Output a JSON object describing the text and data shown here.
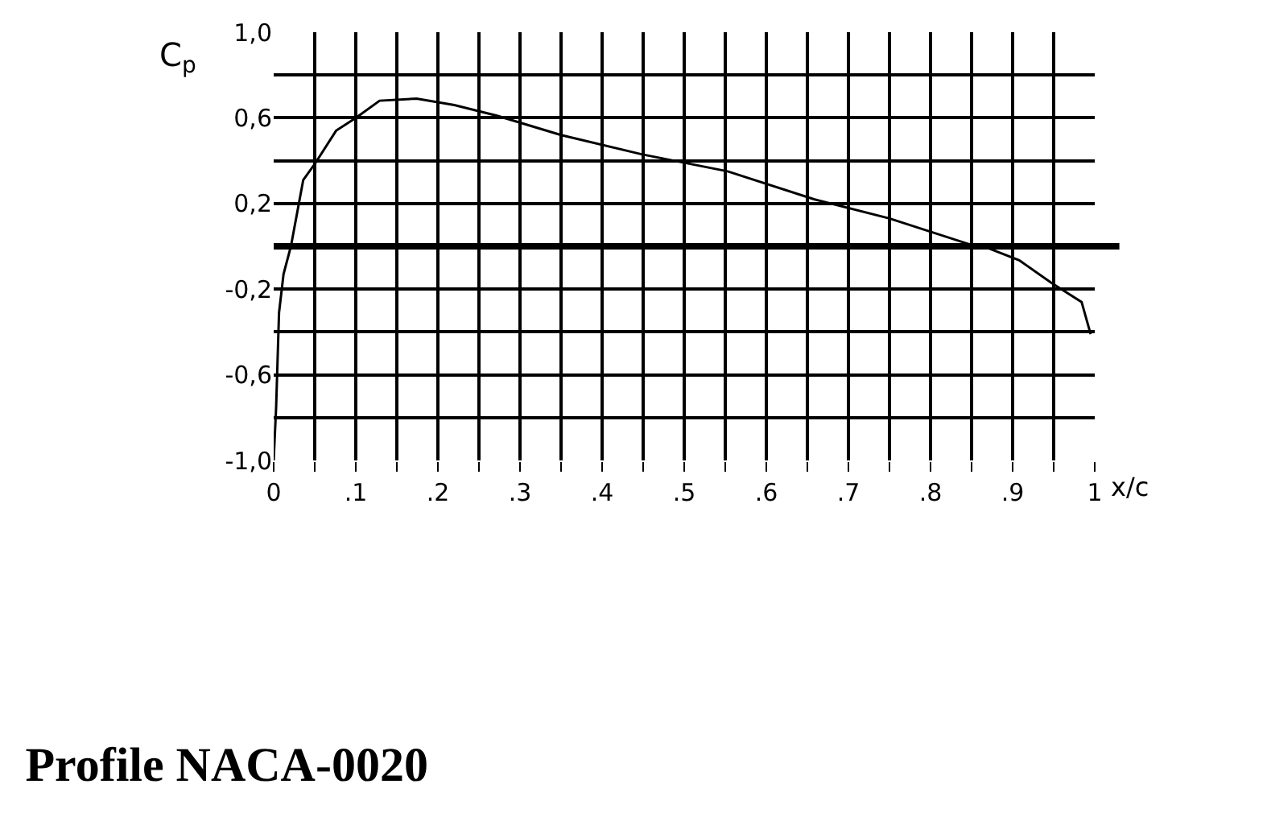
{
  "chart_data": {
    "type": "line",
    "title": "Profile NACA-0020",
    "xlabel": "x/c",
    "ylabel": "C$_{p}$",
    "x": [
      0,
      0.003,
      0.0065,
      0.012,
      0.021,
      0.036,
      0.051,
      0.076,
      0.1,
      0.129,
      0.174,
      0.22,
      0.272,
      0.35,
      0.448,
      0.553,
      0.658,
      0.75,
      0.847,
      0.868,
      0.908,
      0.947,
      0.984,
      0.995
    ],
    "series": [
      {
        "color": "#000000",
        "values": [
          -1.0,
          -0.75,
          -0.31,
          -0.13,
          0.0,
          0.31,
          0.39,
          0.54,
          0.6,
          0.68,
          0.69,
          0.66,
          0.61,
          0.52,
          0.43,
          0.35,
          0.22,
          0.13,
          0.01,
          -0.005,
          -0.065,
          -0.17,
          -0.26,
          -0.41
        ]
      }
    ],
    "xlim": [
      0,
      1
    ],
    "ylim": [
      -1,
      1
    ],
    "xticks": [
      0,
      {
        "value": 0.05,
        "label": null
      },
      {
        "value": 0.1,
        "label": ".1"
      },
      {
        "value": 0.15,
        "label": null
      },
      {
        "value": 0.2,
        "label": ".2"
      },
      {
        "value": 0.25,
        "label": null
      },
      {
        "value": 0.3,
        "label": ".3"
      },
      {
        "value": 0.35,
        "label": null
      },
      {
        "value": 0.4,
        "label": ".4"
      },
      {
        "value": 0.45,
        "label": null
      },
      {
        "value": 0.5,
        "label": ".5"
      },
      {
        "value": 0.55,
        "label": null
      },
      {
        "value": 0.6,
        "label": ".6"
      },
      {
        "value": 0.65,
        "label": null
      },
      {
        "value": 0.7,
        "label": ".7"
      },
      {
        "value": 0.75,
        "label": null
      },
      {
        "value": 0.8,
        "label": ".8"
      },
      {
        "value": 0.85,
        "label": null
      },
      {
        "value": 0.9,
        "label": ".9"
      },
      {
        "value": 0.95,
        "label": null
      },
      1
    ],
    "yticks": [
      {
        "value": -1,
        "label": "-1,0"
      },
      {
        "value": -0.8,
        "label": null
      },
      {
        "value": -0.6,
        "label": "-0,6"
      },
      {
        "value": -0.4,
        "label": null
      },
      {
        "value": -0.2,
        "label": "-0,2"
      },
      {
        "value": 0,
        "label": null
      },
      {
        "value": 0.2,
        "label": "0,2"
      },
      {
        "value": 0.4,
        "label": null
      },
      {
        "value": 0.6,
        "label": "0,6"
      },
      {
        "value": 0.8,
        "label": null
      },
      {
        "value": 1,
        "label": "1,0"
      }
    ],
    "ref_lines": [
      {
        "axis": "y",
        "value": 0,
        "color": "#000000"
      }
    ],
    "grid": true,
    "marker": "none",
    "line_style": "solid"
  }
}
